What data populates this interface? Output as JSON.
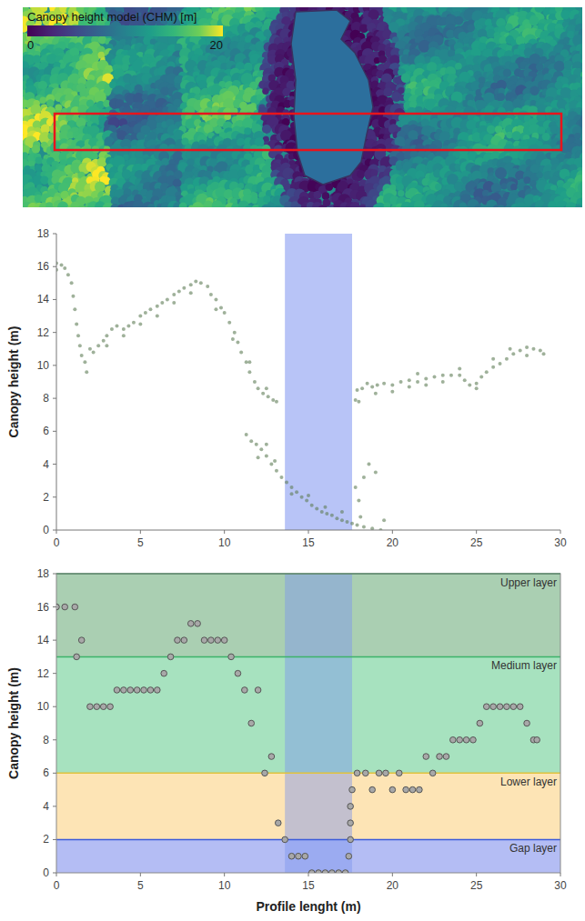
{
  "chart_data": [
    {
      "type": "image",
      "title": "Canopy height model (CHM) [m]",
      "colorbar": {
        "range": [
          0,
          20
        ],
        "ticks": [
          0,
          20
        ]
      }
    },
    {
      "type": "scatter",
      "y_label": "Canopy height (m)",
      "xlim": [
        0,
        30
      ],
      "ylim": [
        0,
        18
      ],
      "xticks": [
        0,
        5,
        10,
        15,
        20,
        25,
        30
      ],
      "yticks": [
        0,
        2,
        4,
        6,
        8,
        10,
        12,
        14,
        16,
        18
      ],
      "grid": false,
      "gap_span": [
        13.6,
        17.6
      ],
      "series": [
        {
          "color": "#5f7d57",
          "marker": "circle",
          "x": [
            0,
            0,
            0.3,
            0.5,
            0.7,
            0.9,
            1,
            1.1,
            1.2,
            1.3,
            1.4,
            1.5,
            1.7,
            1.8,
            2,
            2.2,
            2.5,
            2.8,
            3,
            3.3,
            3.6,
            4,
            4.3,
            4.6,
            5,
            5.3,
            5.6,
            6,
            6.3,
            6.6,
            7,
            7.3,
            7.6,
            8,
            8.3,
            8.6,
            9,
            9.2,
            9.5,
            9.8,
            10,
            10.3,
            10.6,
            10.8,
            11,
            11.3,
            11.5,
            11.8,
            12,
            12.3,
            12.6,
            12.9,
            13.1,
            5,
            6,
            7,
            8,
            9.5,
            10.5,
            11.5,
            12.5,
            3,
            4,
            11.3,
            11.6,
            11.9,
            12.2,
            12.5,
            12.8,
            13.1,
            13.4,
            13.7,
            14,
            14.3,
            14.6,
            14.9,
            15.2,
            15.5,
            15.8,
            16.1,
            16.4,
            16.7,
            17,
            17.3,
            17.6,
            17.9,
            18.3,
            18.8,
            19.3,
            12,
            12.5,
            13,
            14,
            15,
            16,
            17,
            18,
            18.3,
            18.6,
            19,
            17.8,
            18.1,
            19.5,
            17.8,
            17.9,
            18.2,
            18.5,
            18.8,
            19.1,
            19.5,
            20,
            20.5,
            21,
            21.5,
            22,
            22.5,
            23,
            23.5,
            24,
            24.3,
            24.6,
            25,
            25.3,
            25.6,
            26,
            26.4,
            26.8,
            27.2,
            27.6,
            28,
            28.4,
            28.8,
            29,
            18,
            19,
            20,
            21,
            22,
            23,
            25,
            26,
            27,
            28,
            21.5,
            24
          ],
          "values": [
            16.2,
            15.8,
            16.1,
            15.9,
            15.5,
            15,
            14.2,
            13.4,
            12.5,
            11.8,
            11.2,
            10.6,
            10.2,
            9.6,
            11,
            10.8,
            11.2,
            11.5,
            11.8,
            12.2,
            12.4,
            12.2,
            12.4,
            12.6,
            13,
            13.2,
            13.4,
            13.6,
            13.8,
            14,
            14.3,
            14.5,
            14.7,
            14.9,
            15.1,
            15,
            14.8,
            14.3,
            14,
            13.5,
            13.2,
            12.6,
            12,
            11.4,
            10.8,
            10.2,
            9.6,
            9,
            8.6,
            8.3,
            8.1,
            7.9,
            7.8,
            12.5,
            13,
            13.8,
            14.4,
            13.4,
            11.6,
            10.2,
            8.6,
            11.2,
            11.8,
            5.8,
            5.4,
            5.2,
            4.9,
            4.5,
            4,
            3.6,
            3.2,
            2.9,
            2.6,
            2.3,
            2,
            1.8,
            1.5,
            1.3,
            1.1,
            1,
            0.9,
            0.7,
            0.6,
            0.5,
            0.4,
            0.3,
            0.2,
            0.1,
            0,
            4.4,
            5.2,
            4.2,
            2.2,
            2.1,
            1.4,
            1.1,
            1.8,
            3.2,
            4,
            3.5,
            2.6,
            0.8,
            0.6,
            7.9,
            8.5,
            8.6,
            8.9,
            8.7,
            8.8,
            8.9,
            8.8,
            9,
            9.1,
            9,
            9.2,
            9.3,
            9.4,
            9.4,
            9.4,
            9.1,
            8.8,
            8.9,
            9.3,
            9.6,
            9.9,
            10.1,
            10.4,
            10.7,
            10.9,
            11.1,
            11,
            10.9,
            10.7,
            7.8,
            8.3,
            8.4,
            8.7,
            8.8,
            9,
            8.6,
            10.4,
            11,
            10.6,
            9.5,
            9.8
          ]
        }
      ]
    },
    {
      "type": "scatter",
      "y_label": "Canopy height (m)",
      "x_label": "Profile lenght (m)",
      "xlim": [
        0,
        30
      ],
      "ylim": [
        0,
        18
      ],
      "xticks": [
        0,
        5,
        10,
        15,
        20,
        25,
        30
      ],
      "yticks": [
        0,
        2,
        4,
        6,
        8,
        10,
        12,
        14,
        16,
        18
      ],
      "grid": false,
      "gap_span": [
        13.6,
        17.6
      ],
      "bands": [
        {
          "name": "Upper layer",
          "range": [
            13,
            18
          ],
          "color": "#aacfb2"
        },
        {
          "name": "Medium layer",
          "range": [
            6,
            13
          ],
          "color": "#a7e2bf"
        },
        {
          "name": "Lower layer",
          "range": [
            2,
            6
          ],
          "color": "#fde4b5"
        },
        {
          "name": "Gap layer",
          "range": [
            0,
            2
          ],
          "color": "#b4bdf4"
        }
      ],
      "series": [
        {
          "color": "#a8a8a8",
          "marker": "circle",
          "x": [
            0,
            0.5,
            1.1,
            1.2,
            1.5,
            2,
            2.4,
            2.8,
            3.2,
            3.6,
            4,
            4.4,
            4.8,
            5.2,
            5.6,
            6,
            6.4,
            6.8,
            7.2,
            7.6,
            8,
            8.4,
            8.8,
            9.2,
            9.6,
            10,
            10.4,
            10.8,
            11.2,
            11.6,
            12,
            12.4,
            12.8,
            13.2,
            13.6,
            14,
            14.4,
            14.8,
            15.2,
            15.6,
            16,
            16.4,
            16.8,
            17.2,
            17.4,
            17.5,
            17.5,
            17.5,
            17.6,
            17.9,
            18.4,
            18.8,
            19.2,
            19.6,
            20,
            20.4,
            20.8,
            21.2,
            21.6,
            22,
            22.4,
            22.8,
            23.2,
            23.6,
            24,
            24.4,
            24.8,
            25.2,
            25.6,
            26,
            26.4,
            26.8,
            27.2,
            27.6,
            28,
            28.4,
            28.6
          ],
          "values": [
            16,
            16,
            16,
            13,
            14,
            10,
            10,
            10,
            10,
            11,
            11,
            11,
            11,
            11,
            11,
            11,
            12,
            13,
            14,
            14,
            15,
            15,
            14,
            14,
            14,
            14,
            13,
            12,
            11,
            9,
            11,
            6,
            7,
            3,
            2,
            1,
            1,
            1,
            0,
            0,
            0,
            0,
            0,
            0,
            1,
            2,
            3,
            4,
            5,
            6,
            6,
            5,
            6,
            6,
            5,
            6,
            5,
            5,
            5,
            7,
            6,
            7,
            7,
            8,
            8,
            8,
            8,
            9,
            10,
            10,
            10,
            10,
            10,
            10,
            9,
            8,
            8
          ]
        }
      ]
    }
  ]
}
